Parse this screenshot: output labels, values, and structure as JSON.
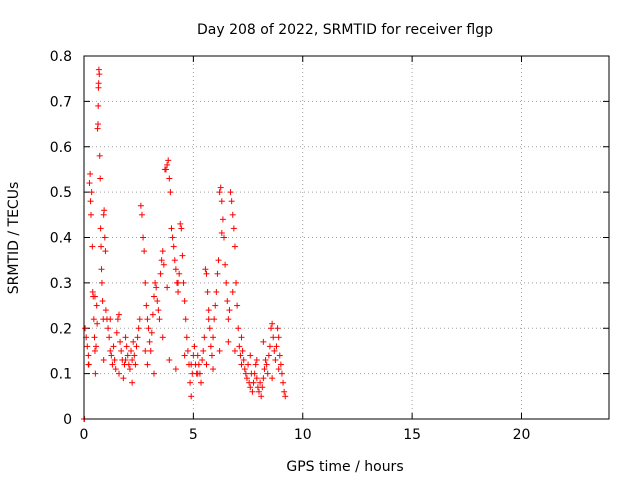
{
  "chart_data": {
    "type": "scatter",
    "title": "Day 208 of 2022, SRMTID for receiver flgp",
    "xlabel": "GPS time / hours",
    "ylabel": "SRMTID / TECUs",
    "xlim": [
      0,
      24
    ],
    "ylim": [
      0,
      0.8
    ],
    "xticks": [
      0,
      5,
      10,
      15,
      20
    ],
    "xtick_labels": [
      "0",
      "5",
      "10",
      "15",
      "20"
    ],
    "yticks": [
      0,
      0.1,
      0.2,
      0.3,
      0.4,
      0.5,
      0.6,
      0.7,
      0.8
    ],
    "ytick_labels": [
      "0",
      "0.1",
      "0.2",
      "0.3",
      "0.4",
      "0.5",
      "0.6",
      "0.7",
      "0.8"
    ],
    "grid": true,
    "marker": "+",
    "color": "#ff0000",
    "series": [
      {
        "name": "SRMTID",
        "points": [
          [
            0.0,
            0.0
          ],
          [
            0.02,
            0.0
          ],
          [
            0.05,
            0.2
          ],
          [
            0.1,
            0.18
          ],
          [
            0.15,
            0.16
          ],
          [
            0.2,
            0.14
          ],
          [
            0.22,
            0.12
          ],
          [
            0.25,
            0.52
          ],
          [
            0.28,
            0.54
          ],
          [
            0.3,
            0.48
          ],
          [
            0.32,
            0.45
          ],
          [
            0.35,
            0.5
          ],
          [
            0.38,
            0.38
          ],
          [
            0.4,
            0.28
          ],
          [
            0.42,
            0.27
          ],
          [
            0.45,
            0.22
          ],
          [
            0.48,
            0.18
          ],
          [
            0.5,
            0.15
          ],
          [
            0.52,
            0.1
          ],
          [
            0.55,
            0.16
          ],
          [
            0.58,
            0.25
          ],
          [
            0.6,
            0.21
          ],
          [
            0.62,
            0.64
          ],
          [
            0.64,
            0.65
          ],
          [
            0.65,
            0.69
          ],
          [
            0.66,
            0.73
          ],
          [
            0.67,
            0.74
          ],
          [
            0.68,
            0.77
          ],
          [
            0.7,
            0.76
          ],
          [
            0.72,
            0.58
          ],
          [
            0.74,
            0.53
          ],
          [
            0.76,
            0.42
          ],
          [
            0.78,
            0.38
          ],
          [
            0.8,
            0.33
          ],
          [
            0.82,
            0.3
          ],
          [
            0.85,
            0.26
          ],
          [
            0.88,
            0.22
          ],
          [
            0.9,
            0.45
          ],
          [
            0.92,
            0.46
          ],
          [
            0.95,
            0.4
          ],
          [
            0.98,
            0.37
          ],
          [
            1.0,
            0.24
          ],
          [
            1.05,
            0.22
          ],
          [
            1.1,
            0.2
          ],
          [
            1.15,
            0.18
          ],
          [
            1.2,
            0.15
          ],
          [
            1.25,
            0.14
          ],
          [
            1.3,
            0.12
          ],
          [
            1.35,
            0.16
          ],
          [
            1.4,
            0.13
          ],
          [
            1.45,
            0.11
          ],
          [
            1.5,
            0.19
          ],
          [
            1.55,
            0.22
          ],
          [
            1.6,
            0.23
          ],
          [
            1.65,
            0.17
          ],
          [
            1.7,
            0.15
          ],
          [
            1.75,
            0.13
          ],
          [
            1.8,
            0.09
          ],
          [
            1.85,
            0.12
          ],
          [
            1.9,
            0.18
          ],
          [
            1.95,
            0.16
          ],
          [
            2.0,
            0.14
          ],
          [
            2.05,
            0.12
          ],
          [
            2.1,
            0.11
          ],
          [
            2.15,
            0.15
          ],
          [
            2.2,
            0.13
          ],
          [
            2.25,
            0.17
          ],
          [
            2.3,
            0.14
          ],
          [
            2.35,
            0.12
          ],
          [
            2.4,
            0.16
          ],
          [
            2.45,
            0.18
          ],
          [
            2.5,
            0.2
          ],
          [
            2.55,
            0.22
          ],
          [
            2.6,
            0.47
          ],
          [
            2.65,
            0.45
          ],
          [
            2.7,
            0.4
          ],
          [
            2.75,
            0.37
          ],
          [
            2.8,
            0.3
          ],
          [
            2.85,
            0.25
          ],
          [
            2.9,
            0.22
          ],
          [
            2.95,
            0.2
          ],
          [
            3.0,
            0.17
          ],
          [
            3.05,
            0.15
          ],
          [
            3.1,
            0.19
          ],
          [
            3.15,
            0.23
          ],
          [
            3.2,
            0.27
          ],
          [
            3.25,
            0.3
          ],
          [
            3.3,
            0.29
          ],
          [
            3.35,
            0.26
          ],
          [
            3.4,
            0.24
          ],
          [
            3.45,
            0.22
          ],
          [
            3.5,
            0.32
          ],
          [
            3.55,
            0.35
          ],
          [
            3.6,
            0.37
          ],
          [
            3.65,
            0.34
          ],
          [
            3.7,
            0.55
          ],
          [
            3.75,
            0.55
          ],
          [
            3.8,
            0.56
          ],
          [
            3.85,
            0.57
          ],
          [
            3.9,
            0.53
          ],
          [
            3.95,
            0.5
          ],
          [
            4.0,
            0.42
          ],
          [
            4.05,
            0.4
          ],
          [
            4.1,
            0.38
          ],
          [
            4.15,
            0.35
          ],
          [
            4.2,
            0.33
          ],
          [
            4.25,
            0.3
          ],
          [
            4.3,
            0.28
          ],
          [
            4.35,
            0.32
          ],
          [
            4.4,
            0.43
          ],
          [
            4.45,
            0.42
          ],
          [
            4.5,
            0.36
          ],
          [
            4.55,
            0.3
          ],
          [
            4.6,
            0.26
          ],
          [
            4.65,
            0.22
          ],
          [
            4.7,
            0.18
          ],
          [
            4.75,
            0.15
          ],
          [
            4.8,
            0.12
          ],
          [
            4.85,
            0.08
          ],
          [
            4.9,
            0.05
          ],
          [
            4.95,
            0.1
          ],
          [
            5.0,
            0.14
          ],
          [
            5.05,
            0.16
          ],
          [
            5.1,
            0.12
          ],
          [
            5.15,
            0.1
          ],
          [
            5.2,
            0.14
          ],
          [
            5.25,
            0.12
          ],
          [
            5.3,
            0.1
          ],
          [
            5.35,
            0.08
          ],
          [
            5.4,
            0.13
          ],
          [
            5.45,
            0.15
          ],
          [
            5.5,
            0.18
          ],
          [
            5.55,
            0.33
          ],
          [
            5.6,
            0.32
          ],
          [
            5.65,
            0.28
          ],
          [
            5.7,
            0.24
          ],
          [
            5.75,
            0.2
          ],
          [
            5.8,
            0.16
          ],
          [
            5.85,
            0.14
          ],
          [
            5.9,
            0.18
          ],
          [
            5.95,
            0.22
          ],
          [
            6.0,
            0.25
          ],
          [
            6.05,
            0.28
          ],
          [
            6.1,
            0.32
          ],
          [
            6.15,
            0.35
          ],
          [
            6.2,
            0.5
          ],
          [
            6.25,
            0.51
          ],
          [
            6.3,
            0.48
          ],
          [
            6.35,
            0.44
          ],
          [
            6.4,
            0.4
          ],
          [
            6.45,
            0.34
          ],
          [
            6.5,
            0.3
          ],
          [
            6.55,
            0.26
          ],
          [
            6.6,
            0.22
          ],
          [
            6.65,
            0.24
          ],
          [
            6.7,
            0.5
          ],
          [
            6.75,
            0.48
          ],
          [
            6.8,
            0.45
          ],
          [
            6.85,
            0.42
          ],
          [
            6.9,
            0.38
          ],
          [
            6.95,
            0.3
          ],
          [
            7.0,
            0.25
          ],
          [
            7.05,
            0.2
          ],
          [
            7.1,
            0.16
          ],
          [
            7.15,
            0.14
          ],
          [
            7.2,
            0.12
          ],
          [
            7.25,
            0.15
          ],
          [
            7.3,
            0.13
          ],
          [
            7.35,
            0.11
          ],
          [
            7.4,
            0.1
          ],
          [
            7.45,
            0.09
          ],
          [
            7.5,
            0.12
          ],
          [
            7.55,
            0.08
          ],
          [
            7.6,
            0.07
          ],
          [
            7.65,
            0.1
          ],
          [
            7.7,
            0.06
          ],
          [
            7.75,
            0.08
          ],
          [
            7.8,
            0.1
          ],
          [
            7.85,
            0.12
          ],
          [
            7.9,
            0.09
          ],
          [
            7.95,
            0.07
          ],
          [
            8.0,
            0.06
          ],
          [
            8.05,
            0.08
          ],
          [
            8.1,
            0.05
          ],
          [
            8.15,
            0.07
          ],
          [
            8.2,
            0.09
          ],
          [
            8.25,
            0.11
          ],
          [
            8.3,
            0.13
          ],
          [
            8.35,
            0.12
          ],
          [
            8.4,
            0.1
          ],
          [
            8.45,
            0.14
          ],
          [
            8.5,
            0.16
          ],
          [
            8.55,
            0.2
          ],
          [
            8.6,
            0.21
          ],
          [
            8.65,
            0.18
          ],
          [
            8.7,
            0.15
          ],
          [
            8.75,
            0.13
          ],
          [
            8.8,
            0.16
          ],
          [
            8.85,
            0.2
          ],
          [
            8.9,
            0.18
          ],
          [
            8.95,
            0.14
          ],
          [
            9.0,
            0.12
          ],
          [
            9.05,
            0.1
          ],
          [
            9.1,
            0.08
          ],
          [
            9.15,
            0.06
          ],
          [
            9.2,
            0.05
          ],
          [
            0.2,
            0.12
          ],
          [
            1.2,
            0.22
          ],
          [
            2.2,
            0.08
          ],
          [
            3.2,
            0.1
          ],
          [
            4.2,
            0.11
          ],
          [
            5.2,
            0.1
          ],
          [
            6.2,
            0.15
          ],
          [
            7.2,
            0.18
          ],
          [
            8.2,
            0.17
          ],
          [
            1.6,
            0.1
          ],
          [
            2.8,
            0.15
          ],
          [
            3.6,
            0.18
          ],
          [
            4.6,
            0.14
          ],
          [
            5.6,
            0.12
          ],
          [
            6.6,
            0.17
          ],
          [
            7.6,
            0.14
          ],
          [
            8.6,
            0.09
          ],
          [
            0.9,
            0.13
          ],
          [
            1.9,
            0.13
          ],
          [
            2.9,
            0.12
          ],
          [
            3.9,
            0.13
          ],
          [
            4.9,
            0.12
          ],
          [
            5.9,
            0.11
          ],
          [
            6.9,
            0.15
          ],
          [
            7.9,
            0.13
          ],
          [
            8.9,
            0.11
          ],
          [
            0.5,
            0.27
          ],
          [
            3.8,
            0.29
          ],
          [
            4.3,
            0.3
          ],
          [
            6.3,
            0.41
          ],
          [
            6.8,
            0.28
          ],
          [
            5.7,
            0.22
          ]
        ]
      }
    ]
  }
}
